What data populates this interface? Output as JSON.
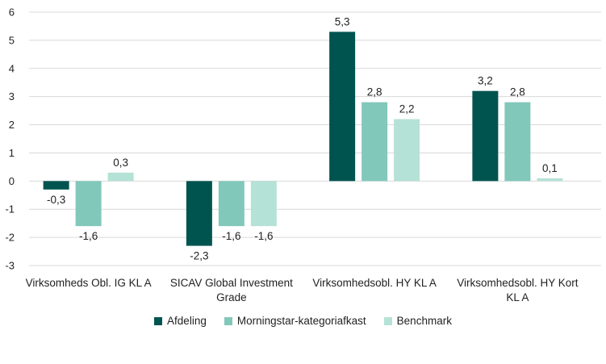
{
  "chart_data": {
    "type": "bar",
    "categories": [
      [
        "Virksomheds Obl. IG KL A"
      ],
      [
        "SICAV Global Investment",
        "Grade"
      ],
      [
        "Virksomhedsobl. HY KL A"
      ],
      [
        "Virksomhedsobl. HY  Kort",
        "KL A"
      ]
    ],
    "series": [
      {
        "name": "Afdeling",
        "color": "#005450",
        "values": [
          -0.3,
          -2.3,
          5.3,
          3.2
        ],
        "labels": [
          "-0,3",
          "-2,3",
          "5,3",
          "3,2"
        ]
      },
      {
        "name": "Morningstar-kategoriafkast",
        "color": "#82c8ba",
        "values": [
          -1.6,
          -1.6,
          2.8,
          2.8
        ],
        "labels": [
          "-1,6",
          "-1,6",
          "2,8",
          "2,8"
        ]
      },
      {
        "name": "Benchmark",
        "color": "#b5e2d6",
        "values": [
          0.3,
          -1.6,
          2.2,
          0.1
        ],
        "labels": [
          "0,3",
          "-1,6",
          "2,2",
          "0,1"
        ]
      }
    ],
    "yticks": [
      "6",
      "5",
      "4",
      "3",
      "2",
      "1",
      "0",
      "-1",
      "-2",
      "-3"
    ],
    "ylim": [
      -3,
      6
    ],
    "grid": true,
    "legend_position": "bottom",
    "title": "",
    "xlabel": "",
    "ylabel": ""
  }
}
